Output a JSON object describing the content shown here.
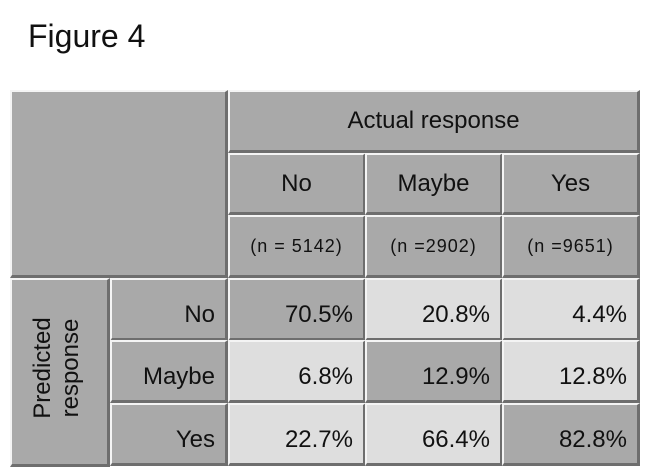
{
  "title": "Figure 4",
  "table": {
    "column_group": "Actual response",
    "row_group": "Predicted response",
    "columns": [
      {
        "label": "No",
        "n": "(n = 5142)"
      },
      {
        "label": "Maybe",
        "n": "(n =2902)"
      },
      {
        "label": "Yes",
        "n": "(n =9651)"
      }
    ],
    "rows": [
      {
        "label": "No",
        "values": [
          "70.5%",
          "20.8%",
          "4.4%"
        ]
      },
      {
        "label": "Maybe",
        "values": [
          "6.8%",
          "12.9%",
          "12.8%"
        ]
      },
      {
        "label": "Yes",
        "values": [
          "22.7%",
          "66.4%",
          "82.8%"
        ]
      }
    ]
  }
}
